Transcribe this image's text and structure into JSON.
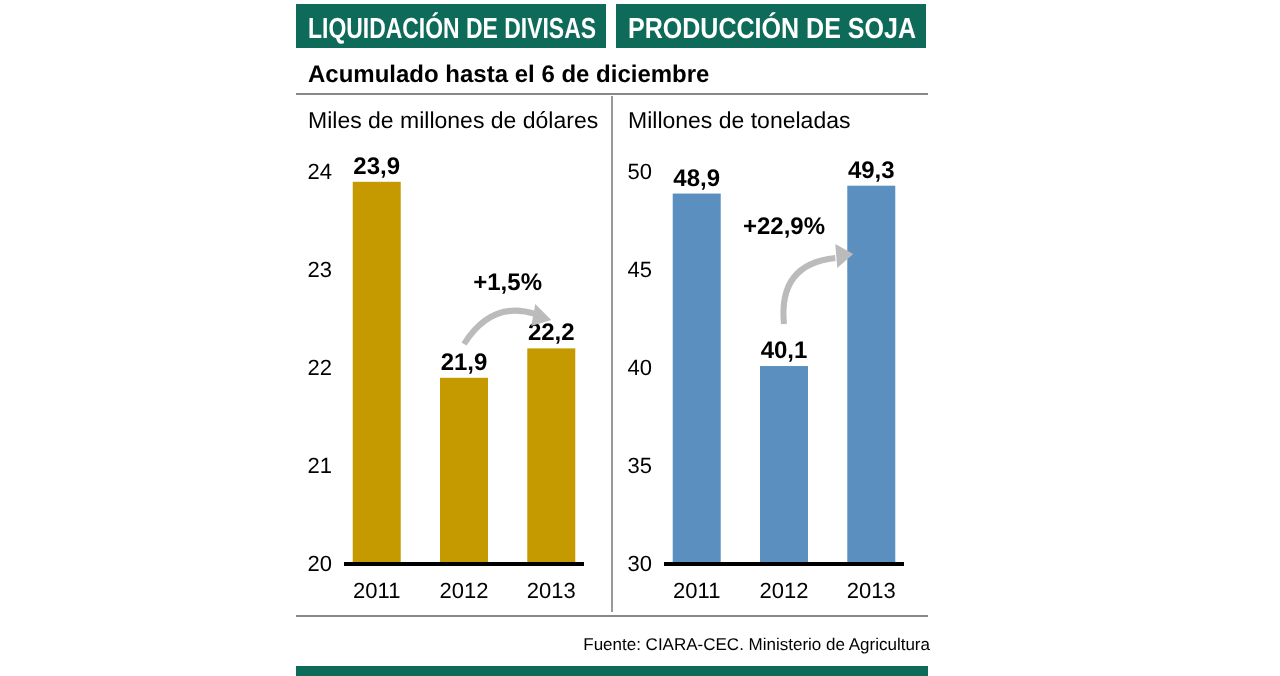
{
  "chart_data": [
    {
      "type": "bar",
      "title": "LIQUIDACIÓN DE DIVISAS",
      "subtitle": "Acumulado hasta el 6 de diciembre",
      "ylabel": "Miles de millones de dólares",
      "categories": [
        "2011",
        "2012",
        "2013"
      ],
      "values": [
        23.9,
        21.9,
        22.2
      ],
      "value_labels": [
        "23,9",
        "21,9",
        "22,2"
      ],
      "color": "#c49a00",
      "ylim": [
        20,
        24
      ],
      "yticks": [
        20,
        21,
        22,
        23,
        24
      ],
      "annotations": [
        "+1,5%"
      ]
    },
    {
      "type": "bar",
      "title": "PRODUCCIÓN DE SOJA",
      "ylabel": "Millones de toneladas",
      "categories": [
        "2011",
        "2012",
        "2013"
      ],
      "values": [
        48.9,
        40.1,
        49.3
      ],
      "value_labels": [
        "48,9",
        "40,1",
        "49,3"
      ],
      "color": "#5b8fc0",
      "ylim": [
        30,
        50
      ],
      "yticks": [
        30,
        35,
        40,
        45,
        50
      ],
      "annotations": [
        "+22,9%",
        "Fuente: CIARA-CEC. Ministerio de Agricultura"
      ]
    }
  ]
}
